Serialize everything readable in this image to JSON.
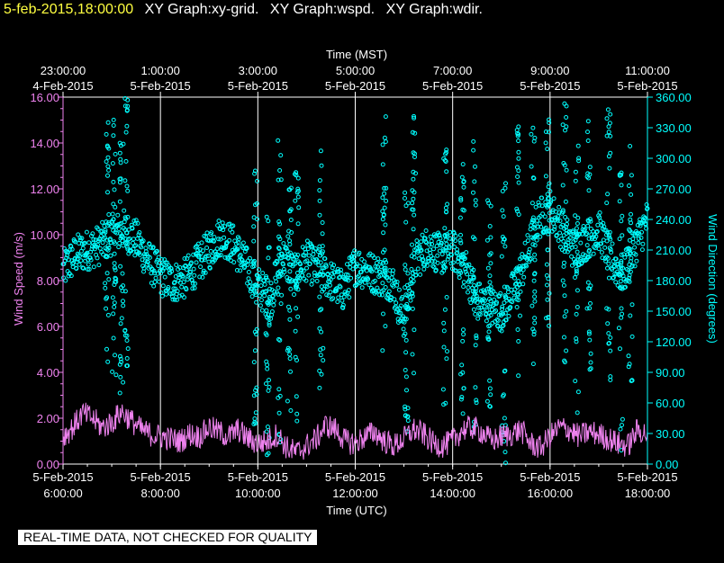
{
  "header": {
    "timestamp": "5-feb-2015,18:00:00",
    "titles": [
      "XY Graph:xy-grid.",
      "XY Graph:wspd.",
      "XY Graph:wdir."
    ]
  },
  "notice": "REAL-TIME DATA, NOT CHECKED FOR QUALITY",
  "colors": {
    "background": "#000000",
    "wind_speed": "#ee82ee",
    "wind_direction": "#00ffff",
    "timestamp": "#ffff40",
    "grid": "#ffffff"
  },
  "chart_data": {
    "type": "scatter",
    "xlabel_top": "Time (MST)",
    "xlabel_bottom": "Time (UTC)",
    "ylabel_left": "Wind Speed (m/s)",
    "ylabel_right": "Wind Direction (degrees)",
    "xlim_utc_hours": [
      6,
      18
    ],
    "ylim_left": [
      0,
      16
    ],
    "ylim_right": [
      0,
      360
    ],
    "grid": true,
    "left_ticks": [
      "0.00",
      "2.00",
      "4.00",
      "6.00",
      "8.00",
      "10.00",
      "12.00",
      "14.00",
      "16.00"
    ],
    "right_ticks": [
      "0.00",
      "30.00",
      "60.00",
      "90.00",
      "120.00",
      "150.00",
      "180.00",
      "210.00",
      "240.00",
      "270.00",
      "300.00",
      "330.00",
      "360.00"
    ],
    "top_ticks": [
      {
        "hour": 6,
        "time": "23:00:00",
        "date": "4-Feb-2015"
      },
      {
        "hour": 8,
        "time": "1:00:00",
        "date": "5-Feb-2015"
      },
      {
        "hour": 10,
        "time": "3:00:00",
        "date": "5-Feb-2015"
      },
      {
        "hour": 12,
        "time": "5:00:00",
        "date": "5-Feb-2015"
      },
      {
        "hour": 14,
        "time": "7:00:00",
        "date": "5-Feb-2015"
      },
      {
        "hour": 16,
        "time": "9:00:00",
        "date": "5-Feb-2015"
      },
      {
        "hour": 18,
        "time": "11:00:00",
        "date": "5-Feb-2015"
      }
    ],
    "bottom_ticks": [
      {
        "hour": 6,
        "date": "5-Feb-2015",
        "time": "6:00:00"
      },
      {
        "hour": 8,
        "date": "5-Feb-2015",
        "time": "8:00:00"
      },
      {
        "hour": 10,
        "date": "5-Feb-2015",
        "time": "10:00:00"
      },
      {
        "hour": 12,
        "date": "5-Feb-2015",
        "time": "12:00:00"
      },
      {
        "hour": 14,
        "date": "5-Feb-2015",
        "time": "14:00:00"
      },
      {
        "hour": 16,
        "date": "5-Feb-2015",
        "time": "16:00:00"
      },
      {
        "hour": 18,
        "date": "5-Feb-2015",
        "time": "18:00:00"
      }
    ],
    "series": [
      {
        "key": "wspd",
        "style": "line",
        "x": [
          6.0,
          6.2,
          6.4,
          6.6,
          6.8,
          7.0,
          7.2,
          7.4,
          7.6,
          7.8,
          8.0,
          8.2,
          8.4,
          8.6,
          8.8,
          9.0,
          9.2,
          9.4,
          9.6,
          9.8,
          10.0,
          10.2,
          10.4,
          10.6,
          10.8,
          11.0,
          11.2,
          11.4,
          11.6,
          11.8,
          12.0,
          12.2,
          12.4,
          12.6,
          12.8,
          13.0,
          13.2,
          13.4,
          13.6,
          13.8,
          14.0,
          14.2,
          14.4,
          14.6,
          14.8,
          15.0,
          15.2,
          15.4,
          15.6,
          15.8,
          16.0,
          16.2,
          16.4,
          16.6,
          16.8,
          17.0,
          17.2,
          17.4,
          17.6,
          17.8,
          18.0
        ],
        "y": [
          1.2,
          1.6,
          2.2,
          2.0,
          1.6,
          1.8,
          2.3,
          1.9,
          1.5,
          1.3,
          1.2,
          1.1,
          1.0,
          1.3,
          1.2,
          1.6,
          1.4,
          1.2,
          1.5,
          1.1,
          0.9,
          1.0,
          1.3,
          0.7,
          0.5,
          0.8,
          1.1,
          1.7,
          1.5,
          1.0,
          0.9,
          1.2,
          1.4,
          1.0,
          0.8,
          1.1,
          1.5,
          1.3,
          0.9,
          0.8,
          1.0,
          1.5,
          1.6,
          1.4,
          1.0,
          1.2,
          1.3,
          1.5,
          0.9,
          0.7,
          1.2,
          1.6,
          1.5,
          1.2,
          1.4,
          1.3,
          1.1,
          0.9,
          0.8,
          1.5,
          1.3
        ]
      },
      {
        "key": "wdir",
        "style": "points",
        "x": [
          6.0,
          6.25,
          6.5,
          6.75,
          7.0,
          7.25,
          7.5,
          7.75,
          8.0,
          8.25,
          8.5,
          8.75,
          9.0,
          9.25,
          9.5,
          9.75,
          10.0,
          10.25,
          10.5,
          10.75,
          11.0,
          11.25,
          11.5,
          11.75,
          12.0,
          12.25,
          12.5,
          12.75,
          13.0,
          13.25,
          13.5,
          13.75,
          14.0,
          14.25,
          14.5,
          14.75,
          15.0,
          15.25,
          15.5,
          15.75,
          16.0,
          16.25,
          16.5,
          16.75,
          17.0,
          17.25,
          17.5,
          17.75,
          18.0
        ],
        "y": [
          190,
          205,
          210,
          215,
          225,
          230,
          220,
          200,
          185,
          178,
          182,
          195,
          210,
          225,
          215,
          195,
          175,
          160,
          205,
          185,
          200,
          190,
          180,
          170,
          195,
          190,
          185,
          180,
          140,
          200,
          215,
          205,
          210,
          195,
          160,
          155,
          150,
          170,
          200,
          240,
          250,
          230,
          210,
          220,
          230,
          200,
          185,
          215,
          240
        ],
        "spikes_x": [
          6.9,
          7.05,
          7.2,
          7.3,
          9.95,
          10.2,
          10.45,
          10.65,
          10.8,
          11.3,
          12.6,
          13.05,
          13.2,
          13.85,
          14.2,
          14.45,
          14.75,
          15.05,
          15.35,
          15.65,
          15.95,
          16.3,
          16.55,
          16.8,
          17.2,
          17.45,
          17.65
        ]
      }
    ]
  }
}
